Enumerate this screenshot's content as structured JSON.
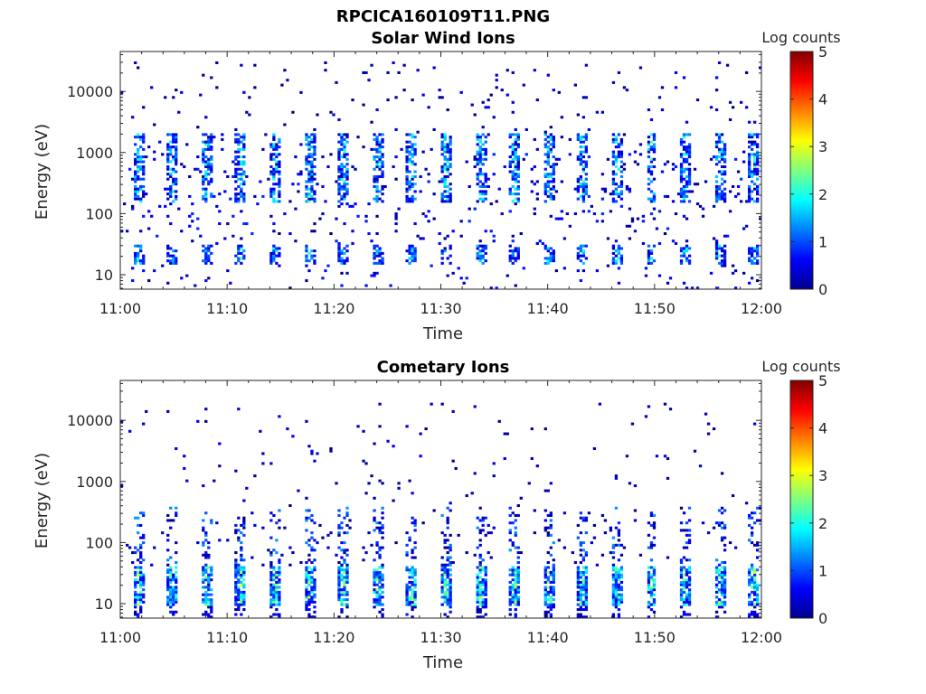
{
  "figure": {
    "title": "RPCICA160109T11.PNG"
  },
  "chart_data": [
    {
      "type": "heatmap",
      "title": "Solar Wind Ions",
      "xlabel": "Time",
      "ylabel": "Energy (eV)",
      "x_ticks": [
        "11:00",
        "11:10",
        "11:20",
        "11:30",
        "11:40",
        "11:50",
        "12:00"
      ],
      "xlim": [
        "11:00",
        "12:00"
      ],
      "y_ticks": [
        10,
        100,
        1000,
        10000
      ],
      "y_tick_labels": [
        "10",
        "100",
        "1000",
        "10000"
      ],
      "ylim": [
        5.8,
        45000
      ],
      "y_scale": "log",
      "colorbar": {
        "label": "Log counts",
        "range": [
          0,
          5
        ],
        "ticks": [
          "0",
          "1",
          "2",
          "3",
          "4",
          "5"
        ],
        "colormap": "jet"
      },
      "pattern": {
        "high_band_ev": [
          150,
          2000
        ],
        "high_band_peak_log_counts": 2.3,
        "low_band_ev": [
          15,
          30
        ],
        "low_band_peak_log_counts": 2.0,
        "burst_period_minutes": 3.2,
        "background": "sparse single counts from 6 eV to 30000 eV"
      }
    },
    {
      "type": "heatmap",
      "title": "Cometary Ions",
      "xlabel": "Time",
      "ylabel": "Energy (eV)",
      "x_ticks": [
        "11:00",
        "11:10",
        "11:20",
        "11:30",
        "11:40",
        "11:50",
        "12:00"
      ],
      "xlim": [
        "11:00",
        "12:00"
      ],
      "y_ticks": [
        10,
        100,
        1000,
        10000
      ],
      "y_tick_labels": [
        "10",
        "100",
        "1000",
        "10000"
      ],
      "ylim": [
        5.8,
        45000
      ],
      "y_scale": "log",
      "colorbar": {
        "label": "Log counts",
        "range": [
          0,
          5
        ],
        "ticks": [
          "0",
          "1",
          "2",
          "3",
          "4",
          "5"
        ],
        "colormap": "jet"
      },
      "pattern": {
        "main_band_ev": [
          9,
          40
        ],
        "main_band_peak_log_counts": 2.8,
        "burst_period_minutes": 3.2,
        "background": "sparse single counts from 6 eV to 20000 eV"
      }
    }
  ]
}
